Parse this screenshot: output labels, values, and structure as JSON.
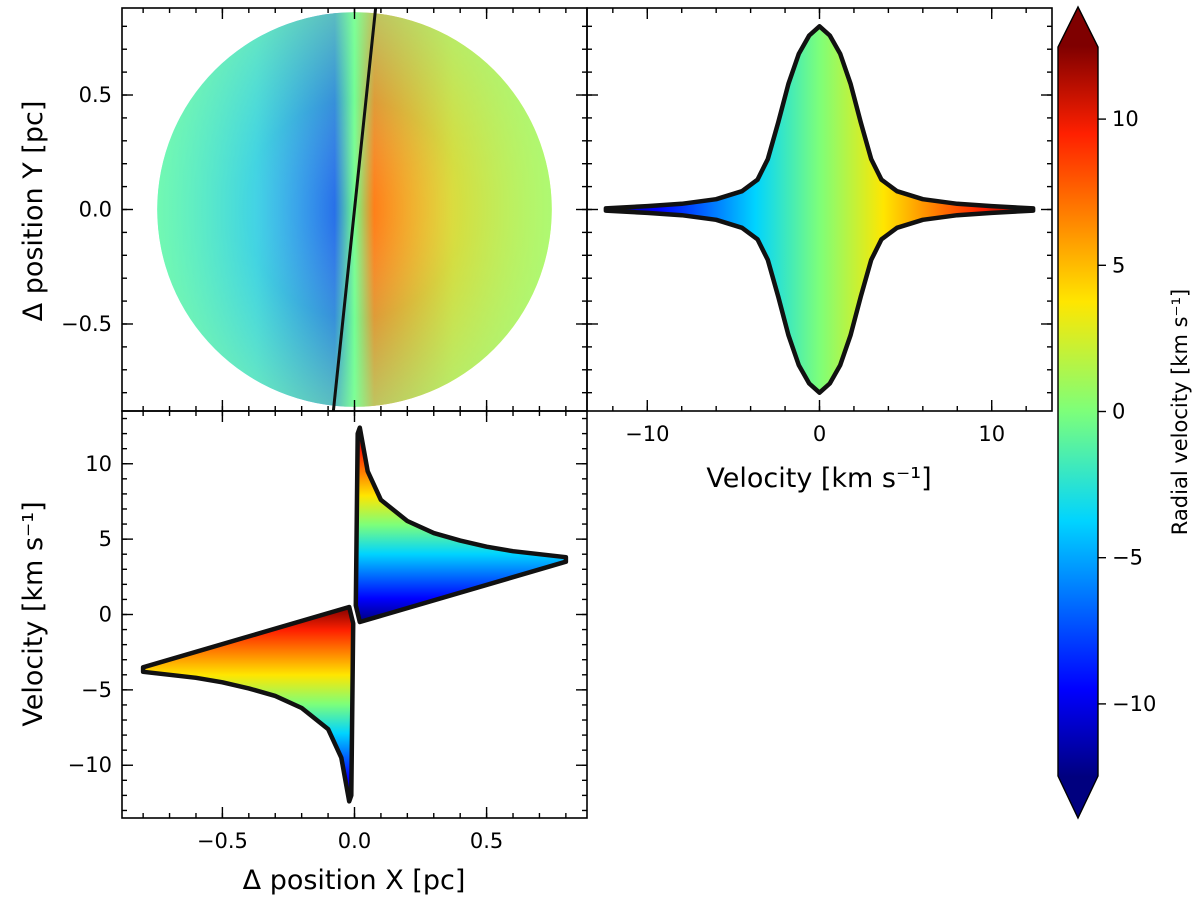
{
  "chart_data": [
    {
      "type": "scatter",
      "panel": "sky-map",
      "xlabel": "",
      "ylabel": "Δ position Y [pc]",
      "xlim": [
        -0.88,
        0.88
      ],
      "ylim": [
        -0.88,
        0.88
      ],
      "xticks": [
        -0.5,
        0.0,
        0.5
      ],
      "yticks": [
        -0.5,
        0.0,
        0.5
      ],
      "yticklabels": [
        "−0.5",
        "0.0",
        "0.5"
      ],
      "disk_radius_pc": 0.8,
      "color_encodes": "radial velocity",
      "line": {
        "x": [
          -0.08,
          0.08
        ],
        "y": [
          -0.88,
          0.88
        ]
      }
    },
    {
      "type": "area",
      "panel": "velocity-distribution",
      "xlabel": "Velocity [km s⁻¹]",
      "ylabel": "",
      "xlim": [
        -13.5,
        13.5
      ],
      "ylim": [
        -0.88,
        0.88
      ],
      "xticks": [
        -10,
        0,
        10
      ],
      "xticklabels": [
        "−10",
        "0",
        "10"
      ],
      "outline_x": [
        0.0,
        0.6,
        1.2,
        1.8,
        2.4,
        3.0,
        3.6,
        4.5,
        6.0,
        8.0,
        10.0,
        12.4
      ],
      "outline_y": [
        0.8,
        0.76,
        0.68,
        0.55,
        0.38,
        0.22,
        0.13,
        0.08,
        0.045,
        0.025,
        0.015,
        0.005
      ]
    },
    {
      "type": "area",
      "panel": "position-velocity",
      "xlabel": "Δ position X [pc]",
      "ylabel": "Velocity [km s⁻¹]",
      "xlim": [
        -0.88,
        0.88
      ],
      "ylim": [
        -13.5,
        13.5
      ],
      "xticks": [
        -0.5,
        0.0,
        0.5
      ],
      "xticklabels": [
        "−0.5",
        "0.0",
        "0.5"
      ],
      "yticks": [
        -10,
        -5,
        0,
        5,
        10
      ],
      "yticklabels": [
        "−10",
        "−5",
        "0",
        "5",
        "10"
      ],
      "upper_envelope_x": [
        0.02,
        0.05,
        0.1,
        0.2,
        0.3,
        0.4,
        0.5,
        0.6,
        0.7,
        0.8
      ],
      "upper_envelope_y": [
        12.4,
        9.5,
        7.6,
        6.2,
        5.4,
        4.9,
        4.5,
        4.2,
        4.0,
        3.8
      ],
      "inner_line_x": [
        0.02,
        0.8
      ],
      "inner_line_y": [
        -0.5,
        3.5
      ]
    }
  ],
  "colorbar": {
    "label": "Radial velocity [km s⁻¹]",
    "range": [
      -12.5,
      12.5
    ],
    "ticks": [
      -10,
      -5,
      0,
      5,
      10
    ],
    "ticklabels": [
      "−10",
      "−5",
      "0",
      "5",
      "10"
    ],
    "colormap": "jet",
    "extend": "both"
  }
}
